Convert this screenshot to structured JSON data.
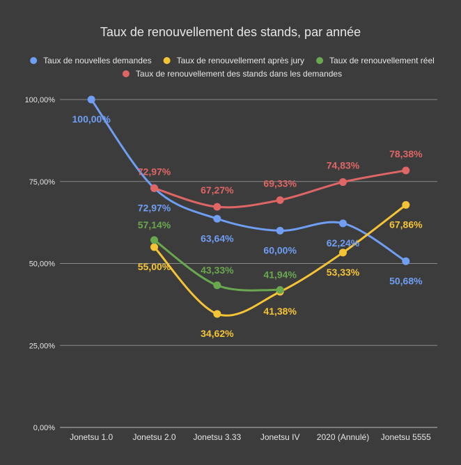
{
  "chart_data": {
    "type": "line",
    "title": "Taux de renouvellement des stands, par année",
    "categories": [
      "Jonetsu 1.0",
      "Jonetsu 2.0",
      "Jonetsu 3.33",
      "Jonetsu IV",
      "2020 (Annulé)",
      "Jonetsu 5555"
    ],
    "yticks": [
      "0,00%",
      "25,00%",
      "50,00%",
      "75,00%",
      "100,00%"
    ],
    "ylim": [
      0,
      100
    ],
    "legend_position": "top",
    "smooth": true,
    "series": [
      {
        "name": "Taux de nouvelles demandes",
        "color": "#6f9ef3",
        "values": [
          100.0,
          72.97,
          63.64,
          60.0,
          62.24,
          50.68
        ],
        "labels": [
          "100,00%",
          "72,97%",
          "63,64%",
          "60,00%",
          "62,24%",
          "50,68%"
        ]
      },
      {
        "name": "Taux de renouvellement après jury",
        "color": "#f5c436",
        "values": [
          null,
          55.0,
          34.62,
          41.38,
          53.33,
          67.86
        ],
        "labels": [
          null,
          "55,00%",
          "34,62%",
          "41,38%",
          "53,33%",
          "67,86%"
        ]
      },
      {
        "name": "Taux de renouvellement réel",
        "color": "#6aa84f",
        "values": [
          null,
          57.14,
          43.33,
          41.94,
          null,
          null
        ],
        "labels": [
          null,
          "57,14%",
          "43,33%",
          "41,94%",
          null,
          null
        ]
      },
      {
        "name": "Taux de renouvellement des stands dans les demandes",
        "color": "#e06666",
        "values": [
          null,
          72.97,
          67.27,
          69.33,
          74.83,
          78.38
        ],
        "labels": [
          null,
          "72,97%",
          "67,27%",
          "69,33%",
          "74,83%",
          "78,38%"
        ]
      }
    ]
  }
}
